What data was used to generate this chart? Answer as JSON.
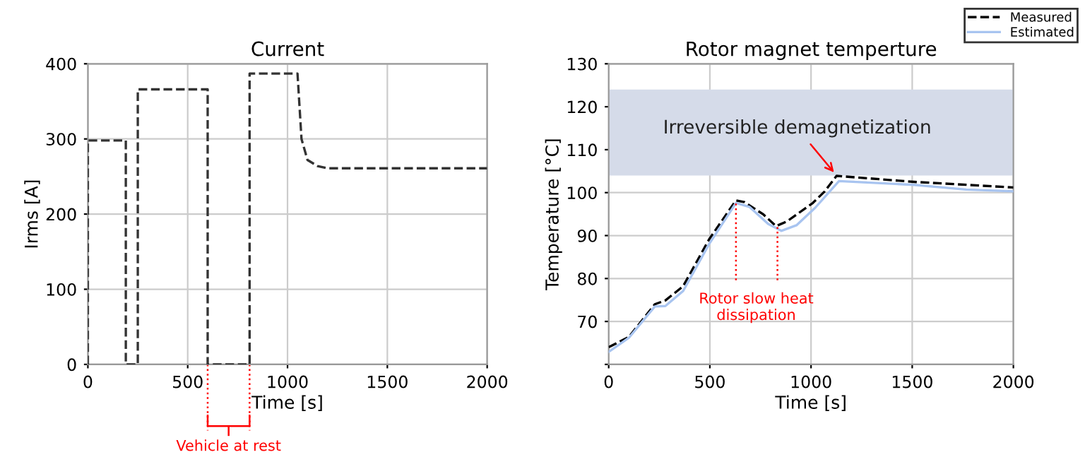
{
  "chart_data": [
    {
      "type": "line",
      "title": "Current",
      "xlabel": "Time [s]",
      "ylabel": "Irms [A]",
      "xlim": [
        0,
        2000
      ],
      "ylim": [
        0,
        400
      ],
      "xticks": [
        0,
        500,
        1000,
        1500,
        2000
      ],
      "yticks": [
        0,
        100,
        200,
        300,
        400
      ],
      "grid": true,
      "legend": false,
      "series": [
        {
          "color": "#333333",
          "line_style": "dashed",
          "x": [
            0,
            0,
            190,
            190,
            250,
            250,
            600,
            600,
            810,
            810,
            1050,
            1070,
            1100,
            1150,
            1200,
            2000
          ],
          "values": [
            0,
            298,
            298,
            0,
            0,
            366,
            366,
            0,
            0,
            387,
            387,
            300,
            272,
            264,
            261,
            261
          ]
        }
      ],
      "annotations": [
        "Vehicle at rest"
      ]
    },
    {
      "type": "line",
      "title": "Rotor magnet temperture",
      "xlabel": "Time [s]",
      "ylabel": "Temperature [°C]",
      "xlim": [
        0,
        2000
      ],
      "ylim": [
        60,
        130
      ],
      "xticks": [
        0,
        500,
        1000,
        1500,
        2000
      ],
      "yticks": [
        {
          "value": 60,
          "label": null
        },
        70,
        80,
        90,
        100,
        110,
        120,
        130
      ],
      "grid": true,
      "legend": "top right",
      "series": [
        {
          "name": "Measured",
          "color": "#000000",
          "line_style": "dashed",
          "x": [
            0,
            100,
            228,
            280,
            368,
            496,
            629,
            671,
            765,
            827,
            881,
            1009,
            1068,
            1126,
            1510,
            2000
          ],
          "values": [
            64.0,
            66.4,
            74.0,
            74.9,
            78.2,
            89.1,
            98.2,
            97.8,
            94.9,
            92.2,
            93.3,
            97.6,
            100.3,
            103.9,
            102.5,
            101.2
          ]
        },
        {
          "name": "Estimated",
          "color": "#a8c4f0",
          "line_style": "solid",
          "x": [
            0,
            100,
            228,
            280,
            368,
            496,
            629,
            695,
            788,
            853,
            928,
            1021,
            1138,
            1510,
            1767,
            2000
          ],
          "values": [
            62.9,
            66.2,
            73.5,
            73.6,
            77.1,
            88.0,
            97.6,
            96.7,
            92.7,
            91.1,
            92.4,
            96.5,
            102.7,
            101.8,
            100.7,
            100.3
          ]
        }
      ],
      "bands": [
        {
          "axis": "y",
          "from": 104,
          "to": 124,
          "color": "#d5dbe9"
        }
      ],
      "annotations": [
        {
          "text": "Irreversible demagnetization",
          "x": 1126,
          "y": 104
        },
        {
          "text": "Rotor slow heat\ndissipation",
          "x": 629,
          "y": 98
        }
      ]
    }
  ]
}
